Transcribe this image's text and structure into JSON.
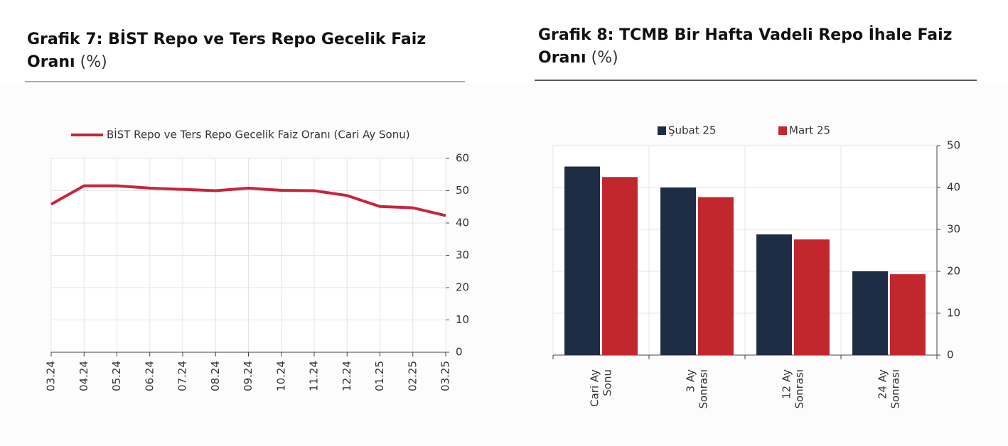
{
  "chart_data": [
    {
      "type": "line",
      "title": "Grafik 7:  BİST Repo ve Ters Repo Gecelik Faiz Oranı",
      "unit": "(%)",
      "categories": [
        "03.24",
        "04.24",
        "05.24",
        "06.24",
        "07.24",
        "08.24",
        "09.24",
        "10.24",
        "11.24",
        "12.24",
        "01.25",
        "02.25",
        "03.25"
      ],
      "series": [
        {
          "name": "BİST Repo ve Ters Repo Gecelik Faiz Oranı (Cari Ay Sonu)",
          "color": "#c8243c",
          "values": [
            45.8,
            51.5,
            51.5,
            50.8,
            50.4,
            50.0,
            50.8,
            50.1,
            50.0,
            48.5,
            45.1,
            44.7,
            42.3
          ]
        }
      ],
      "ylim": [
        0,
        60
      ],
      "yticks": [
        0,
        10,
        20,
        30,
        40,
        50,
        60
      ],
      "grid": true
    },
    {
      "type": "bar",
      "title": "Grafik 8: TCMB Bir Hafta Vadeli Repo İhale Faiz Oranı",
      "unit": "(%)",
      "categories": [
        "Cari Ay\nSonu",
        "3 Ay\nSonrası",
        "12 Ay\nSonrası",
        "24 Ay\nSonrası"
      ],
      "series": [
        {
          "name": "Şubat 25",
          "color": "#1f2d44",
          "values": [
            45,
            40,
            28.8,
            20
          ]
        },
        {
          "name": "Mart 25",
          "color": "#c1272d",
          "values": [
            42.5,
            37.7,
            27.6,
            19.3
          ]
        }
      ],
      "ylim": [
        0,
        50
      ],
      "yticks": [
        0,
        10,
        20,
        30,
        40,
        50
      ],
      "grid": true
    }
  ]
}
